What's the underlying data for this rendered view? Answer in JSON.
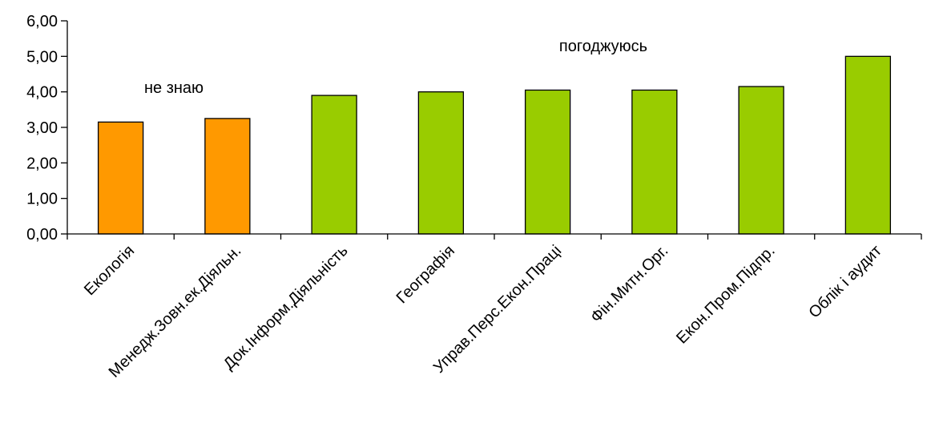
{
  "chart_data": {
    "type": "bar",
    "categories": [
      "Екологія",
      "Менедж.Зовн.ек.Діяльн.",
      "Док.Інформ.Діяльність",
      "Географія",
      "Управ.Перс.Екон.Праці",
      "Фін.Митн.Орг.",
      "Екон.Пром.Підпр.",
      "Облік і аудит"
    ],
    "values": [
      3.15,
      3.25,
      3.9,
      4.0,
      4.05,
      4.05,
      4.15,
      5.0
    ],
    "bar_colors": [
      "#ff9900",
      "#ff9900",
      "#99cc00",
      "#99cc00",
      "#99cc00",
      "#99cc00",
      "#99cc00",
      "#99cc00"
    ],
    "ylim": [
      0,
      6
    ],
    "yticks": [
      "0,00",
      "1,00",
      "2,00",
      "3,00",
      "4,00",
      "5,00",
      "6,00"
    ],
    "annotations": [
      "не знаю",
      "погоджуюсь"
    ],
    "grid": false,
    "legend": "none",
    "title": "",
    "xlabel": "",
    "ylabel": ""
  }
}
